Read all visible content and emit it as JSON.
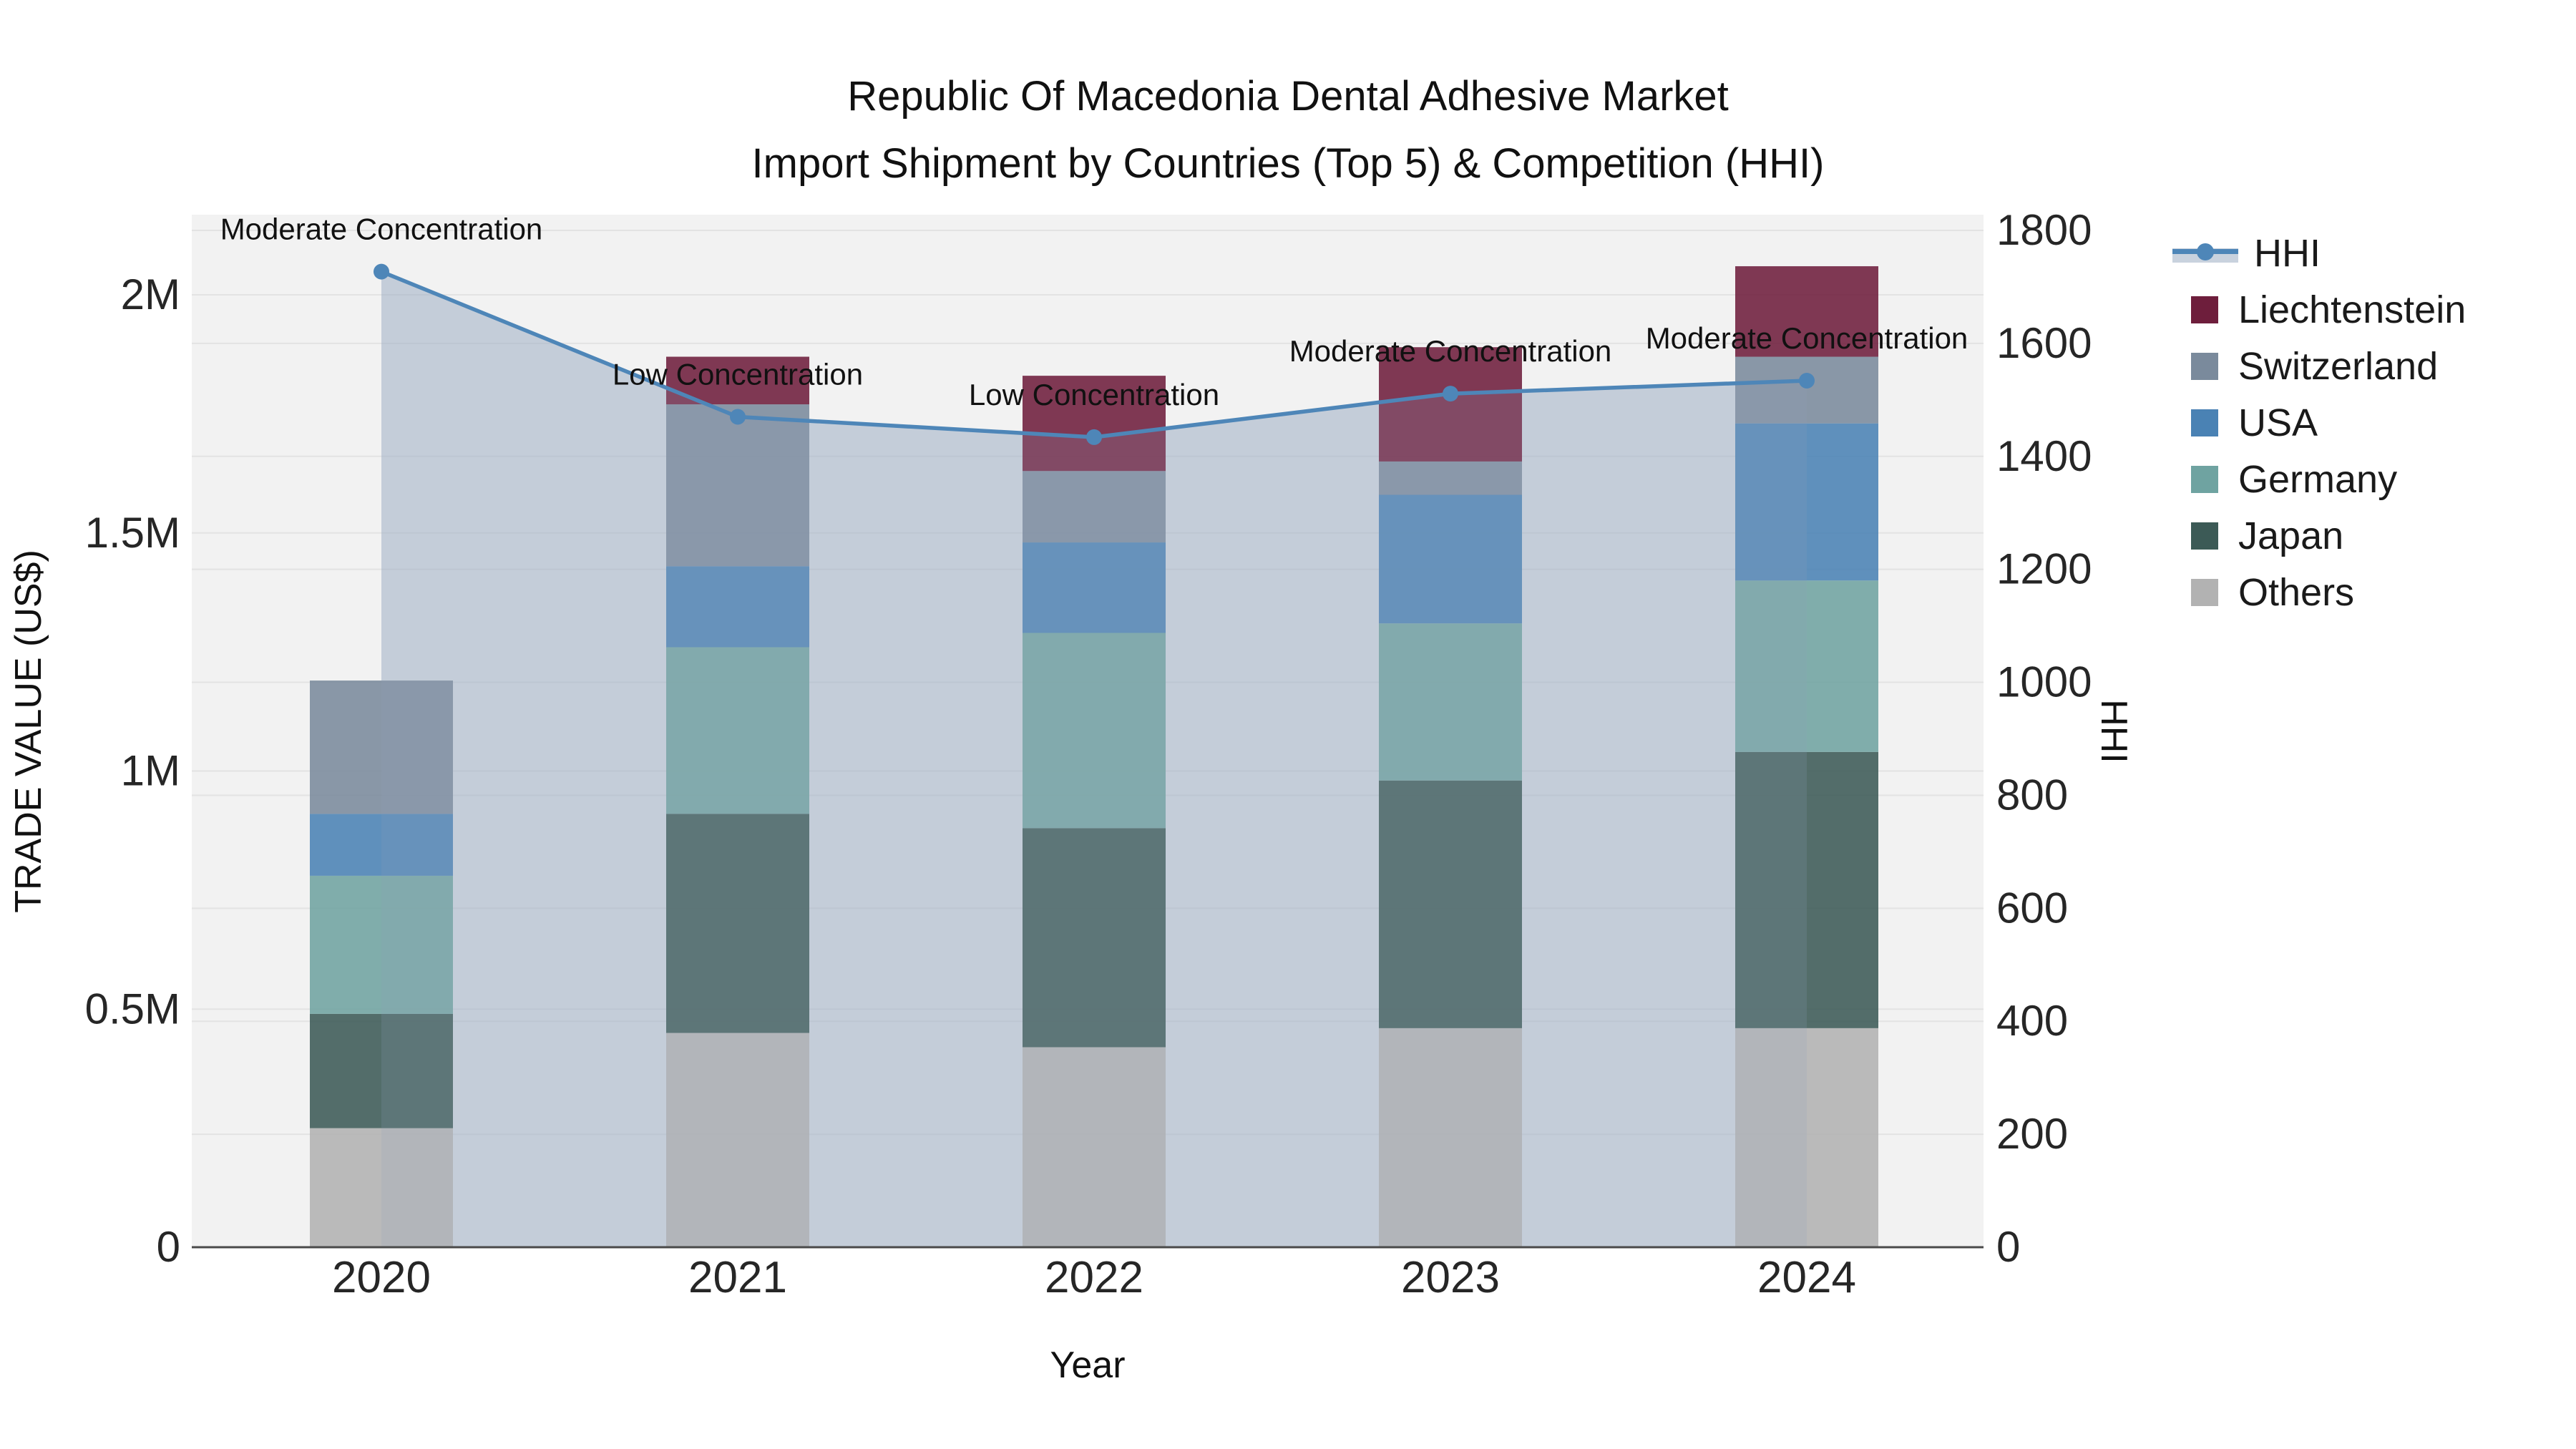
{
  "title": {
    "line1": "Republic Of Macedonia Dental Adhesive Market",
    "line2": "Import Shipment by Countries (Top 5) & Competition (HHI)"
  },
  "axes": {
    "left": {
      "title": "TRADE VALUE (US$)",
      "tick_labels": [
        "0",
        "0.5M",
        "1M",
        "1.5M",
        "2M"
      ],
      "tick_values": [
        0,
        0.5,
        1,
        1.5,
        2
      ]
    },
    "right": {
      "title": "HHI",
      "tick_labels": [
        "0",
        "200",
        "400",
        "600",
        "800",
        "1000",
        "1200",
        "1400",
        "1600",
        "1800"
      ],
      "tick_values": [
        0,
        200,
        400,
        600,
        800,
        1000,
        1200,
        1400,
        1600,
        1800
      ]
    },
    "x": {
      "title": "Year",
      "tick_labels": [
        "2020",
        "2021",
        "2022",
        "2023",
        "2024"
      ]
    }
  },
  "legend": {
    "items": [
      {
        "label": "HHI",
        "type": "line",
        "color": "#4e86b8",
        "band_color": "#c9d2de"
      },
      {
        "label": "Liechtenstein",
        "type": "swatch",
        "color": "#6e1e3c"
      },
      {
        "label": "Switzerland",
        "type": "swatch",
        "color": "#7a8a9c"
      },
      {
        "label": "USA",
        "type": "swatch",
        "color": "#4a82b4"
      },
      {
        "label": "Germany",
        "type": "swatch",
        "color": "#6fa3a1"
      },
      {
        "label": "Japan",
        "type": "swatch",
        "color": "#3c5a56"
      },
      {
        "label": "Others",
        "type": "swatch",
        "color": "#b2b2b2"
      }
    ]
  },
  "chart_data": {
    "type": "bar",
    "subtype": "stacked-bars-with-line-area",
    "title": "Republic Of Macedonia Dental Adhesive Market — Import Shipment by Countries (Top 5) & Competition (HHI)",
    "categories": [
      "2020",
      "2021",
      "2022",
      "2023",
      "2024"
    ],
    "xlabel": "Year",
    "ylabel_left": "TRADE VALUE (US$), millions",
    "ylabel_right": "HHI",
    "ylim_left": [
      0,
      2.17
    ],
    "ylim_right": [
      0,
      1828
    ],
    "grid": true,
    "legend_position": "right",
    "stack_order": "bottom-to-top",
    "series": [
      {
        "name": "Others",
        "color": "#b2b2b2",
        "values": [
          0.25,
          0.45,
          0.42,
          0.46,
          0.46
        ]
      },
      {
        "name": "Japan",
        "color": "#3c5a56",
        "values": [
          0.24,
          0.46,
          0.46,
          0.52,
          0.58
        ]
      },
      {
        "name": "Germany",
        "color": "#6fa3a1",
        "values": [
          0.29,
          0.35,
          0.41,
          0.33,
          0.36
        ]
      },
      {
        "name": "USA",
        "color": "#4a82b4",
        "values": [
          0.13,
          0.17,
          0.19,
          0.27,
          0.33
        ]
      },
      {
        "name": "Switzerland",
        "color": "#7a8a9c",
        "values": [
          0.28,
          0.34,
          0.15,
          0.07,
          0.14
        ]
      },
      {
        "name": "Liechtenstein",
        "color": "#6e1e3c",
        "values": [
          0.0,
          0.1,
          0.2,
          0.24,
          0.19
        ]
      }
    ],
    "bar_totals": [
      1.19,
      1.87,
      1.83,
      1.89,
      2.06
    ],
    "line": {
      "name": "HHI",
      "color": "#4e86b8",
      "fill_color": "rgba(164,180,200,0.5)",
      "values": [
        1727,
        1470,
        1434,
        1511,
        1534
      ]
    },
    "annotations": [
      {
        "category": "2020",
        "text": "Moderate Concentration"
      },
      {
        "category": "2021",
        "text": "Low Concentration"
      },
      {
        "category": "2022",
        "text": "Low Concentration"
      },
      {
        "category": "2023",
        "text": "Moderate Concentration"
      },
      {
        "category": "2024",
        "text": "Moderate Concentration"
      }
    ]
  }
}
